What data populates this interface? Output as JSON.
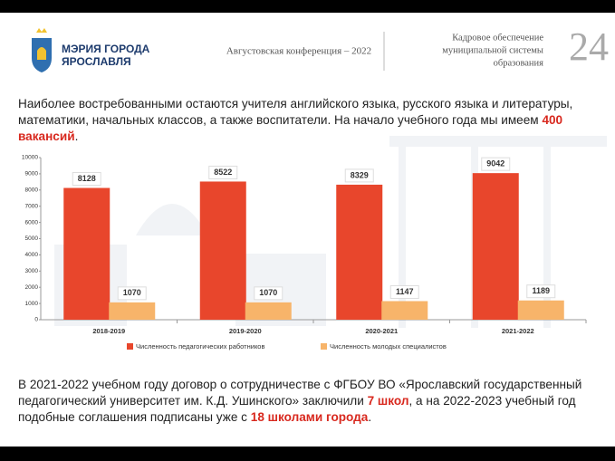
{
  "header": {
    "org_lines": [
      "МЭРИЯ ГОРОДА",
      "ЯРОСЛАВЛЯ"
    ],
    "conference": "Августовская конференция – 2022",
    "topic_lines": [
      "Кадровое обеспечение",
      "муниципальной системы",
      "образования"
    ],
    "page_number": "24"
  },
  "intro": {
    "parts": [
      {
        "text": "Наиболее востребованными остаются учителя английского языка, русского языка и литературы, математики, начальных классов, а также воспитатели. На начало учебного года мы имеем ",
        "emphasis": false
      },
      {
        "text": "400 вакансий",
        "emphasis": true
      },
      {
        "text": ".",
        "emphasis": false
      }
    ]
  },
  "chart_data": {
    "type": "bar",
    "categories": [
      "2018-2019",
      "2019-2020",
      "2020-2021",
      "2021-2022"
    ],
    "series": [
      {
        "name": "Численность педагогических работников",
        "color": "#e8462c",
        "values": [
          8128,
          8522,
          8329,
          9042
        ]
      },
      {
        "name": "Численность молодых специалистов",
        "color": "#f7b46a",
        "values": [
          1070,
          1070,
          1147,
          1189
        ]
      }
    ],
    "ylim": [
      0,
      10000
    ],
    "yticks": [
      0,
      1000,
      2000,
      3000,
      4000,
      5000,
      6000,
      7000,
      8000,
      9000,
      10000
    ],
    "data_labels": true
  },
  "footer_note": {
    "parts": [
      {
        "text": "В 2021-2022 учебном году договор о сотрудничестве с ФГБОУ ВО «Ярославский государственный педагогический университет им. К.Д. Ушинского» заключили ",
        "emphasis": false
      },
      {
        "text": "7 школ",
        "emphasis": true
      },
      {
        "text": ", а на 2022-2023 учебный год подобные соглашения подписаны уже с ",
        "emphasis": false
      },
      {
        "text": "18 школами города",
        "emphasis": true
      },
      {
        "text": ".",
        "emphasis": false
      }
    ]
  }
}
